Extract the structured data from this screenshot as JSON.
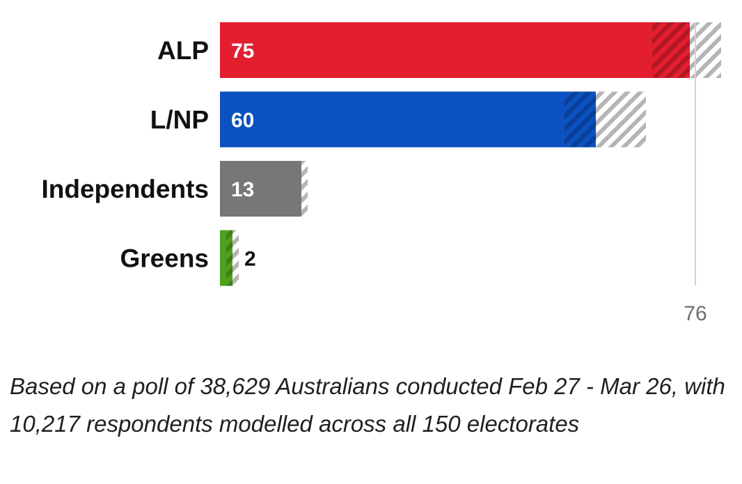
{
  "chart_data": {
    "type": "bar",
    "orientation": "horizontal",
    "categories": [
      "ALP",
      "L/NP",
      "Independents",
      "Greens"
    ],
    "values": [
      75,
      60,
      13,
      2
    ],
    "uncertainty_range": [
      [
        69,
        80
      ],
      [
        55,
        68
      ],
      [
        13,
        14
      ],
      [
        1,
        3
      ]
    ],
    "majority_line": {
      "value": 76,
      "label": "76"
    },
    "xlim": [
      0,
      80
    ],
    "grid": false,
    "legend": "none",
    "colors": [
      "#e31e2f",
      "#0b51c1",
      "#777777",
      "#4fa01d"
    ],
    "hatch_color": "#b5b5b5"
  },
  "footnote": "Based on a poll of 38,629 Australians conducted Feb 27 - Mar 26, with 10,217 respondents modelled across all 150 electorates"
}
